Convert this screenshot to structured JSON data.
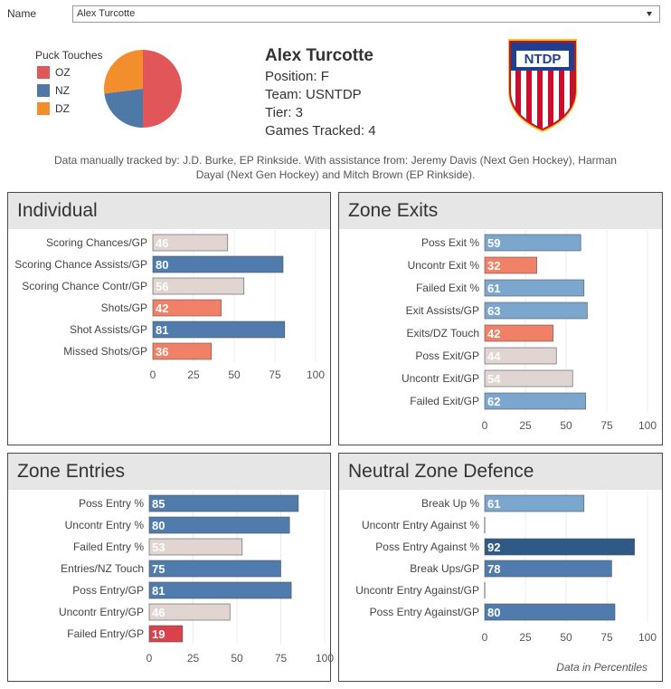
{
  "filter": {
    "label": "Name",
    "value": "Alex Turcotte"
  },
  "player": {
    "name": "Alex Turcotte",
    "position": "Position: F",
    "team": "Team: USNTDP",
    "tier": "Tier: 3",
    "games": "Games Tracked: 4"
  },
  "logo_text": "NTDP",
  "credit": "Data manually tracked by: J.D. Burke, EP Rinkside. With assistance from: Jeremy Davis (Next Gen Hockey), Harman Dayal (Next Gen Hockey) and Mitch Brown (EP Rinkside).",
  "footnote": "Data in Percentiles",
  "colors": {
    "dark_blue": "#2e5a87",
    "blue": "#4f7cac",
    "light_blue": "#7ba7cf",
    "neutral": "#e0d5d1",
    "salmon": "#f08166",
    "red": "#d9424b",
    "pie_oz": "#e15759",
    "pie_nz": "#4e79a7",
    "pie_dz": "#f28e2b"
  },
  "chart_data": [
    {
      "type": "pie",
      "title": "Puck Touches",
      "labels": [
        "OZ",
        "NZ",
        "DZ"
      ],
      "values": [
        50,
        23,
        27
      ],
      "colors": [
        "#e15759",
        "#4e79a7",
        "#f28e2b"
      ]
    },
    {
      "type": "bar",
      "title": "Individual",
      "categories": [
        "Scoring Chances/GP",
        "Scoring Chance Assists/GP",
        "Scoring Chance Contr/GP",
        "Shots/GP",
        "Shot Assists/GP",
        "Missed Shots/GP"
      ],
      "values": [
        46,
        80,
        56,
        42,
        81,
        36
      ],
      "colors": [
        "#e0d5d1",
        "#4f7cac",
        "#e0d5d1",
        "#f08166",
        "#4f7cac",
        "#f08166"
      ],
      "xlim": [
        0,
        100
      ],
      "xticks": [
        0,
        25,
        50,
        75,
        100
      ]
    },
    {
      "type": "bar",
      "title": "Zone Exits",
      "categories": [
        "Poss Exit %",
        "Uncontr Exit %",
        "Failed Exit %",
        "Exit Assists/GP",
        "Exits/DZ Touch",
        "Poss Exit/GP",
        "Uncontr Exit/GP",
        "Failed Exit/GP"
      ],
      "values": [
        59,
        32,
        61,
        63,
        42,
        44,
        54,
        62
      ],
      "colors": [
        "#7ba7cf",
        "#f08166",
        "#7ba7cf",
        "#7ba7cf",
        "#f08166",
        "#e0d5d1",
        "#e0d5d1",
        "#7ba7cf"
      ],
      "xlim": [
        0,
        100
      ],
      "xticks": [
        0,
        25,
        50,
        75,
        100
      ]
    },
    {
      "type": "bar",
      "title": "Zone Entries",
      "categories": [
        "Poss Entry %",
        "Uncontr Entry %",
        "Failed Entry %",
        "Entries/NZ Touch",
        "Poss Entry/GP",
        "Uncontr Entry/GP",
        "Failed Entry/GP"
      ],
      "values": [
        85,
        80,
        53,
        75,
        81,
        46,
        19
      ],
      "colors": [
        "#4f7cac",
        "#4f7cac",
        "#e0d5d1",
        "#4f7cac",
        "#4f7cac",
        "#e0d5d1",
        "#d9424b"
      ],
      "xlim": [
        0,
        100
      ],
      "xticks": [
        0,
        25,
        50,
        75,
        100
      ]
    },
    {
      "type": "bar",
      "title": "Neutral Zone Defence",
      "categories": [
        "Break Up %",
        "Uncontr Entry Against %",
        "Poss Entry Against %",
        "Break Ups/GP",
        "Uncontr Entry Against/GP",
        "Poss Entry Against/GP"
      ],
      "values": [
        61,
        null,
        92,
        78,
        null,
        80
      ],
      "colors": [
        "#7ba7cf",
        "#4f7cac",
        "#2e5a87",
        "#4f7cac",
        "#4f7cac",
        "#4f7cac"
      ],
      "xlim": [
        0,
        100
      ],
      "xticks": [
        0,
        25,
        50,
        75,
        100
      ]
    }
  ]
}
